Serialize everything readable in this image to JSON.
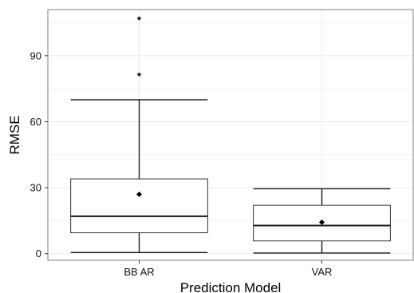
{
  "chart_data": {
    "type": "box",
    "xlabel": "Prediction Model",
    "ylabel": "RMSE",
    "ylim": [
      -3,
      111
    ],
    "y_ticks": [
      0,
      30,
      60,
      90
    ],
    "y_tick_labels": [
      "0",
      "30",
      "60",
      "90"
    ],
    "grid": true,
    "theme": "bw",
    "categories": [
      "BB AR",
      "VAR"
    ],
    "boxes": [
      {
        "category": "BB AR",
        "whisker_low": 0.5,
        "q1": 9.5,
        "median": 17,
        "q3": 34,
        "whisker_high": 70,
        "mean": 27,
        "outliers": [
          81.5,
          107
        ]
      },
      {
        "category": "VAR",
        "whisker_low": 0.3,
        "q1": 5.8,
        "median": 12.8,
        "q3": 22,
        "whisker_high": 29.5,
        "mean": 14.3,
        "outliers": []
      }
    ],
    "colors": {
      "panel_border": "#7f7f7f",
      "grid": "#ebebeb",
      "box_line": "#333333",
      "whisker": "#1a1a1a",
      "point": "#000000",
      "outlier": "#333333"
    }
  }
}
